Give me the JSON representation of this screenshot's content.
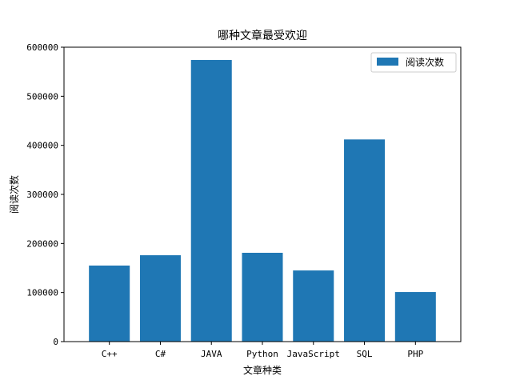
{
  "chart_data": {
    "type": "bar",
    "title": "哪种文章最受欢迎",
    "xlabel": "文章种类",
    "ylabel": "阅读次数",
    "categories": [
      "C++",
      "C#",
      "JAVA",
      "Python",
      "JavaScript",
      "SQL",
      "PHP"
    ],
    "series": [
      {
        "name": "阅读次数",
        "values": [
          155000,
          176000,
          574000,
          181000,
          145000,
          412000,
          101000
        ]
      }
    ],
    "ylim": [
      0,
      600000
    ],
    "yticks": [
      "0",
      "100000",
      "200000",
      "300000",
      "400000",
      "500000",
      "600000"
    ],
    "grid": false,
    "legend_position": "top-right",
    "bar_color": "#1f77b4"
  }
}
